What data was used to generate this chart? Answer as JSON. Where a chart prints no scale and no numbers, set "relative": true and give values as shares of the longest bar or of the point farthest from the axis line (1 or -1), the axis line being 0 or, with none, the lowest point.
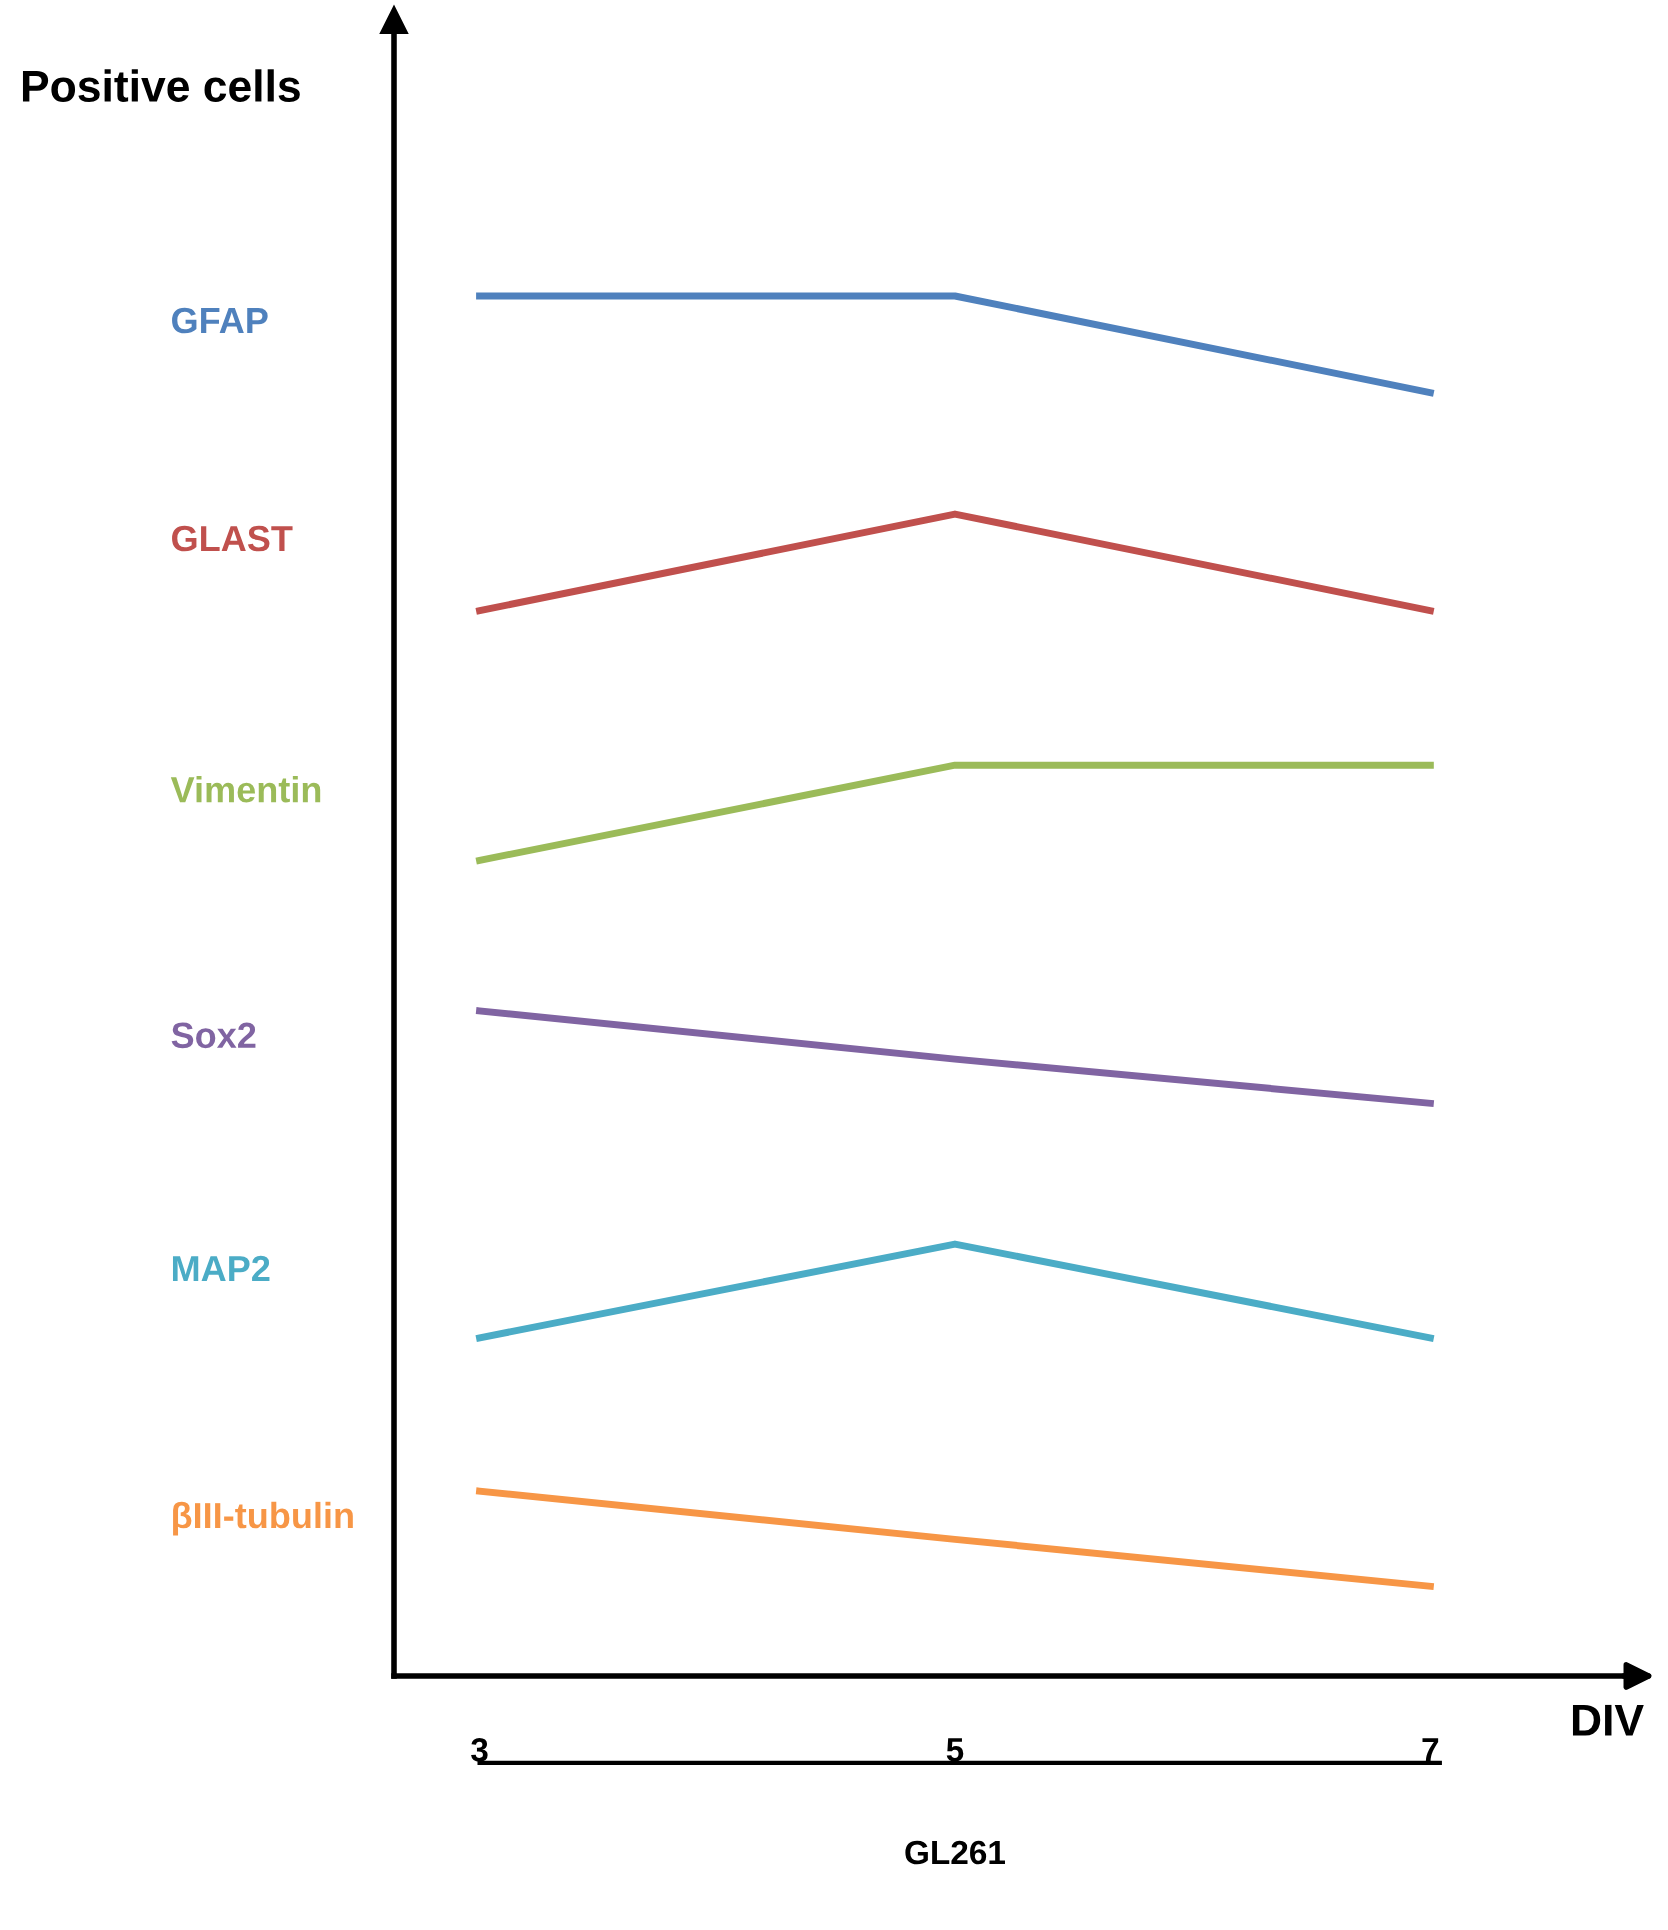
{
  "chart_data": {
    "type": "line",
    "relative": true,
    "ylabel": "Positive cells",
    "xlabel": "DIV",
    "categories": [
      "3",
      "5",
      "7"
    ],
    "tick_labels": "x",
    "grid": false,
    "marker": "none",
    "line_style": "solid",
    "annotations": [
      "GL261"
    ],
    "series": [
      {
        "name": "GFAP",
        "color": "#4f81bd",
        "values": [
          1,
          1,
          0.93
        ]
      },
      {
        "name": "GLAST",
        "color": "#c0504d",
        "values": [
          0.772,
          0.842,
          0.772
        ]
      },
      {
        "name": "Vimentin",
        "color": "#9bbb59",
        "values": [
          0.591,
          0.66,
          0.66
        ]
      },
      {
        "name": "Sox2",
        "color": "#8064a2",
        "values": [
          0.482,
          0.447,
          0.415
        ]
      },
      {
        "name": "MAP2",
        "color": "#4bacc6",
        "values": [
          0.245,
          0.313,
          0.245
        ]
      },
      {
        "name": "βIII-tubulin",
        "color": "#f79646",
        "values": [
          0.134,
          0.099,
          0.065
        ]
      }
    ]
  }
}
